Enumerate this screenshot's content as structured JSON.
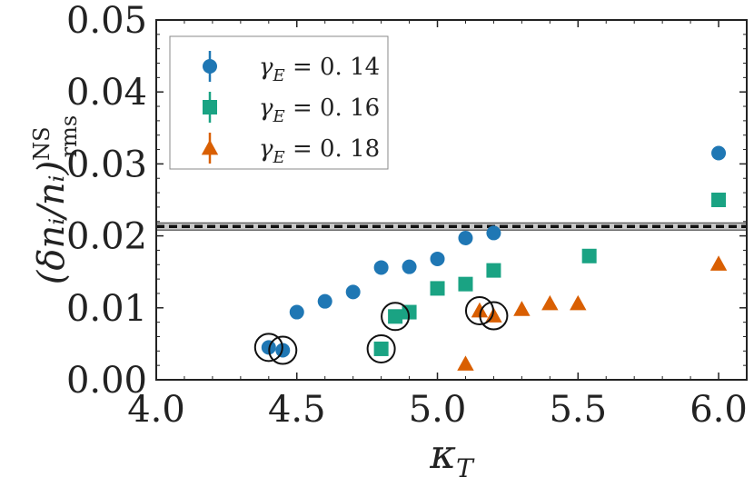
{
  "chart_data": {
    "type": "scatter",
    "xlabel": "κ_T",
    "ylabel": "(δn_i/n_i)^NS_rms",
    "xlim": [
      4.0,
      6.1
    ],
    "ylim": [
      0.0,
      0.05
    ],
    "x_ticks": [
      "4.0",
      "4.5",
      "5.0",
      "5.5",
      "6.0"
    ],
    "y_ticks": [
      "0.00",
      "0.01",
      "0.02",
      "0.03",
      "0.04",
      "0.05"
    ],
    "x_tick_values": [
      4.0,
      4.5,
      5.0,
      5.5,
      6.0
    ],
    "y_tick_values": [
      0.0,
      0.01,
      0.02,
      0.03,
      0.04,
      0.05
    ],
    "legend_position": "top-left",
    "series": [
      {
        "name": "γ_E = 0.14",
        "label_main": "γ",
        "label_sub": "E",
        "label_rest": " = 0. 14",
        "marker": "circle",
        "color": "#1f77b4",
        "x": [
          4.4,
          4.45,
          4.5,
          4.6,
          4.7,
          4.8,
          4.9,
          5.0,
          5.1,
          5.2,
          6.0
        ],
        "y": [
          0.0045,
          0.0041,
          0.0094,
          0.0109,
          0.0122,
          0.0156,
          0.0157,
          0.0168,
          0.0197,
          0.0204,
          0.0315
        ]
      },
      {
        "name": "γ_E = 0.16",
        "label_main": "γ",
        "label_sub": "E",
        "label_rest": " = 0. 16",
        "marker": "square",
        "color": "#1aa383",
        "x": [
          4.8,
          4.85,
          4.9,
          5.0,
          5.1,
          5.2,
          5.54,
          6.0
        ],
        "y": [
          0.0043,
          0.0088,
          0.0094,
          0.0127,
          0.0133,
          0.0152,
          0.0172,
          0.025
        ]
      },
      {
        "name": "γ_E = 0.18",
        "label_main": "γ",
        "label_sub": "E",
        "label_rest": " = 0. 18",
        "marker": "triangle",
        "color": "#d95f02",
        "x": [
          5.1,
          5.15,
          5.2,
          5.3,
          5.4,
          5.5,
          6.0
        ],
        "y": [
          0.0022,
          0.0096,
          0.0089,
          0.0098,
          0.0106,
          0.0106,
          0.0161
        ]
      }
    ],
    "circled_points": [
      {
        "x": 4.4,
        "y": 0.0045
      },
      {
        "x": 4.45,
        "y": 0.0041
      },
      {
        "x": 4.8,
        "y": 0.0043
      },
      {
        "x": 4.85,
        "y": 0.0088
      },
      {
        "x": 5.15,
        "y": 0.0096
      },
      {
        "x": 5.2,
        "y": 0.0089
      }
    ],
    "reference_line": {
      "y": 0.0213,
      "band": [
        0.0208,
        0.0218
      ],
      "style": "dashed",
      "color": "#111111",
      "band_color": "#c8c8c8"
    }
  }
}
